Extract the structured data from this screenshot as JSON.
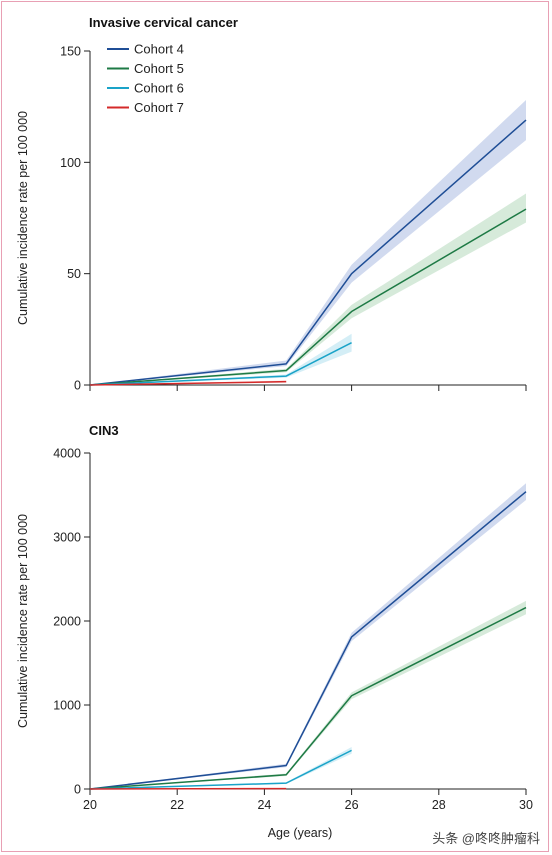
{
  "watermark": "头条 @咚咚肿瘤科",
  "chart_data": [
    {
      "type": "line",
      "title": "Invasive cervical cancer",
      "ylabel": "Cumulative incidence rate per 100 000",
      "xlabel": "",
      "xlim": [
        20,
        30
      ],
      "ylim": [
        0,
        150
      ],
      "xticks": [
        20,
        22,
        24,
        26,
        28,
        30
      ],
      "yticks": [
        0,
        50,
        100,
        150
      ],
      "legend_position": "top-left",
      "series": [
        {
          "name": "Cohort 4",
          "color": "#1f4e96",
          "band_color": "#c9d3ec",
          "x": [
            20,
            24.5,
            26,
            30
          ],
          "y": [
            0,
            9.5,
            50,
            119
          ],
          "lower": [
            0,
            8.5,
            46,
            110
          ],
          "upper": [
            0,
            11,
            54,
            128
          ]
        },
        {
          "name": "Cohort 5",
          "color": "#1e7a45",
          "band_color": "#cfe6d4",
          "x": [
            20,
            24.5,
            26,
            30
          ],
          "y": [
            0,
            6.5,
            33,
            79
          ],
          "lower": [
            0,
            5.7,
            30,
            73
          ],
          "upper": [
            0,
            7.3,
            36,
            86
          ]
        },
        {
          "name": "Cohort 6",
          "color": "#1aa3c8",
          "band_color": "#cdebf4",
          "x": [
            20,
            24.5,
            26
          ],
          "y": [
            0,
            4,
            19
          ],
          "lower": [
            0,
            3.3,
            15
          ],
          "upper": [
            0,
            4.7,
            23
          ]
        },
        {
          "name": "Cohort 7",
          "color": "#d42a2a",
          "band_color": "#f5d0d0",
          "x": [
            20,
            24.5
          ],
          "y": [
            0,
            1.5
          ],
          "lower": [
            0,
            1.0
          ],
          "upper": [
            0,
            2.0
          ]
        }
      ]
    },
    {
      "type": "line",
      "title": "CIN3",
      "ylabel": "Cumulative incidence rate per 100 000",
      "xlabel": "Age (years)",
      "xlim": [
        20,
        30
      ],
      "ylim": [
        0,
        4000
      ],
      "xticks": [
        20,
        22,
        24,
        26,
        28,
        30
      ],
      "xtick_labels": [
        "20",
        "22",
        "24",
        "26",
        "28",
        "30"
      ],
      "yticks": [
        0,
        1000,
        2000,
        3000,
        4000
      ],
      "series": [
        {
          "name": "Cohort 4",
          "color": "#1f4e96",
          "band_color": "#c9d3ec",
          "x": [
            20,
            24.5,
            26,
            30
          ],
          "y": [
            0,
            280,
            1810,
            3540
          ],
          "lower": [
            0,
            260,
            1760,
            3440
          ],
          "upper": [
            0,
            300,
            1860,
            3640
          ]
        },
        {
          "name": "Cohort 5",
          "color": "#1e7a45",
          "band_color": "#cfe6d4",
          "x": [
            20,
            24.5,
            26,
            30
          ],
          "y": [
            0,
            170,
            1110,
            2160
          ],
          "lower": [
            0,
            155,
            1070,
            2080
          ],
          "upper": [
            0,
            185,
            1150,
            2240
          ]
        },
        {
          "name": "Cohort 6",
          "color": "#1aa3c8",
          "band_color": "#cdebf4",
          "x": [
            20,
            24.5,
            26
          ],
          "y": [
            0,
            70,
            460
          ],
          "lower": [
            0,
            60,
            420
          ],
          "upper": [
            0,
            80,
            500
          ]
        },
        {
          "name": "Cohort 7",
          "color": "#d42a2a",
          "band_color": "#f5d0d0",
          "x": [
            20,
            24.5
          ],
          "y": [
            0,
            5
          ],
          "lower": [
            0,
            3
          ],
          "upper": [
            0,
            7
          ]
        }
      ]
    }
  ]
}
